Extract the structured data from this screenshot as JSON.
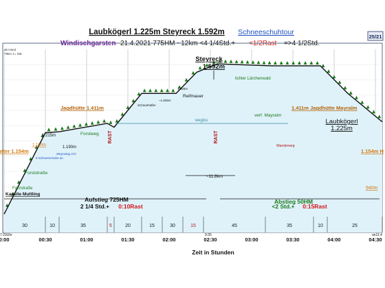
{
  "header": {
    "title_peaks": "Laubkögerl 1.225m  Steyreck 1.592m",
    "title_link": "Schneeschuhtour",
    "subtitle_start": "Windischgarsten",
    "subtitle_details": "21.4.2021    775HM    ~12km    <4 1/4Std.+",
    "subtitle_rest": "<1/2Rast",
    "subtitle_total": "=>4 1/2Std.",
    "page_badge": "25/21",
    "legend_note_1": "ab Hand",
    "legend_note_2": "79km  1= Std."
  },
  "colors": {
    "fill": "#dff2fa",
    "profile": "#1a1a1a",
    "grid": "#9aa6b5",
    "hut": "#b5650a",
    "rast": "#b01818",
    "green": "#1a7a1a",
    "blue": "#2050c0",
    "purple": "#6a1a9a"
  },
  "chart_data": {
    "type": "area",
    "xlabel": "Zeit in Stunden",
    "x_ticks": [
      "0:00",
      "00:30",
      "01:00",
      "01:30",
      "02:00",
      "02:30",
      "03:00",
      "03:30",
      "04:00",
      "04:30"
    ],
    "x_minutes": [
      0,
      30,
      40,
      75,
      80,
      100,
      125,
      140,
      155,
      195,
      230,
      250,
      275
    ],
    "elevation_m": [
      620,
      1154,
      1160,
      1215,
      1190,
      1411,
      1411,
      1550,
      1605,
      1592,
      1592,
      1411,
      1225
    ],
    "segments": [
      {
        "label": "30",
        "color": "#1a1a1a"
      },
      {
        "label": "10",
        "color": "#1a1a1a"
      },
      {
        "label": "35",
        "color": "#1a1a1a"
      },
      {
        "label": "5",
        "color": "#b01818"
      },
      {
        "label": "20",
        "color": "#1a1a1a"
      },
      {
        "label": "15",
        "color": "#1a1a1a"
      },
      {
        "label": "30",
        "color": "#1a1a1a"
      },
      {
        "label": "15",
        "color": "#b01818"
      },
      {
        "label": "45",
        "color": "#1a1a1a"
      },
      {
        "label": "35",
        "color": "#1a1a1a"
      },
      {
        "label": "10",
        "color": "#1a1a1a"
      },
      {
        "label": "25",
        "color": "#1a1a1a"
      }
    ],
    "start_time": "7:20Uhr",
    "end_time": "an11:4",
    "rast_time": "9:35",
    "labels": {
      "steyreck": "Steyreck",
      "steyreck_elev": "1.592m",
      "laub": "Laubkögerl",
      "laub_elev": "1.225m",
      "jagd": "Jagdhütte 1.411m",
      "jagd_mayr": "1.411m Jagdhütte Mayralm",
      "hatter": "atter 1.154m",
      "hatter_r": "1.154m H",
      "m1160": "1.160m",
      "m1215": "1.215m",
      "m1190": "1.190m",
      "m1550": "1.550m",
      "m1605": "~1.605m",
      "forstweg": "Forstweg",
      "forststrasse": "Forststraße",
      "fahrstrasse": "Fahrstraße",
      "kapelle": "Kapelle Muttling",
      "schneeschuhe": "5 Schneeschuhe an",
      "steyrsteig": "Steyrsteig 472",
      "reifmauer": "Reifmauer",
      "larchenwald": "lichter Lärchenwald",
      "wegios": "weglos",
      "mayralm": "verf. Mayralm",
      "wanderweg": "Wanderweg",
      "schnee_kurz": "Schneehüfler",
      "m940": "940m",
      "km": "~11,8km",
      "rast": "RAST",
      "aufstieg": "Aufstieg 725HM",
      "aufstieg_time": "2 1/4 Std.+",
      "aufstieg_rast": "0:10Rast",
      "abstieg": "Abstieg 50HM",
      "abstieg_time": "<2 Std.+",
      "abstieg_rast": "0:15Rast"
    }
  }
}
